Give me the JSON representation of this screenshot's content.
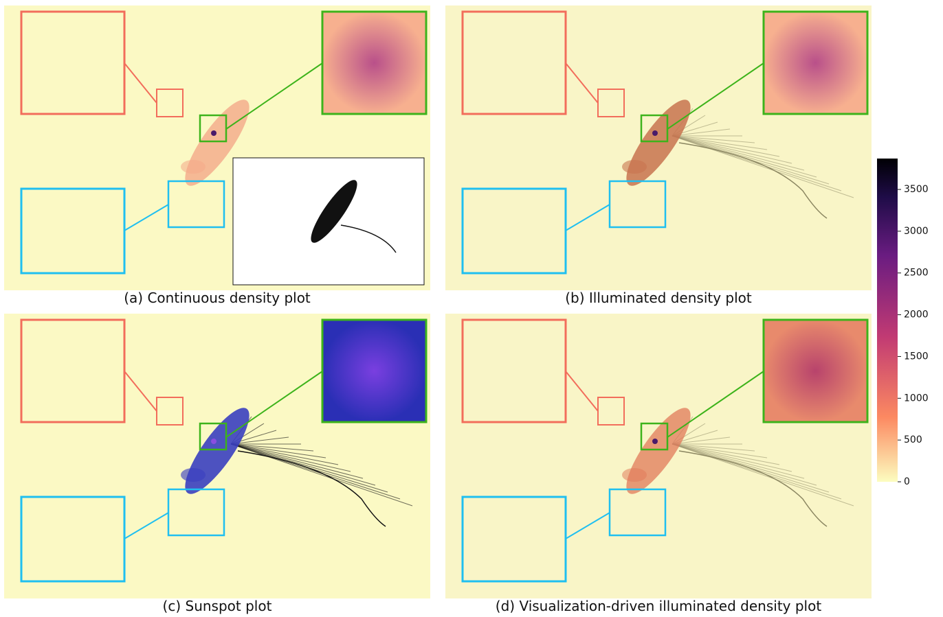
{
  "panels": [
    {
      "caption": "(a) Continuous density plot"
    },
    {
      "caption": "(b) Illuminated density plot"
    },
    {
      "caption": "(c) Sunspot plot"
    },
    {
      "caption": "(d) Visualization-driven illuminated density plot"
    }
  ],
  "colorbar": {
    "ylim": [
      0,
      3870
    ],
    "yticks": [
      0,
      500,
      1000,
      1500,
      2000,
      2500,
      3000,
      3500
    ]
  }
}
